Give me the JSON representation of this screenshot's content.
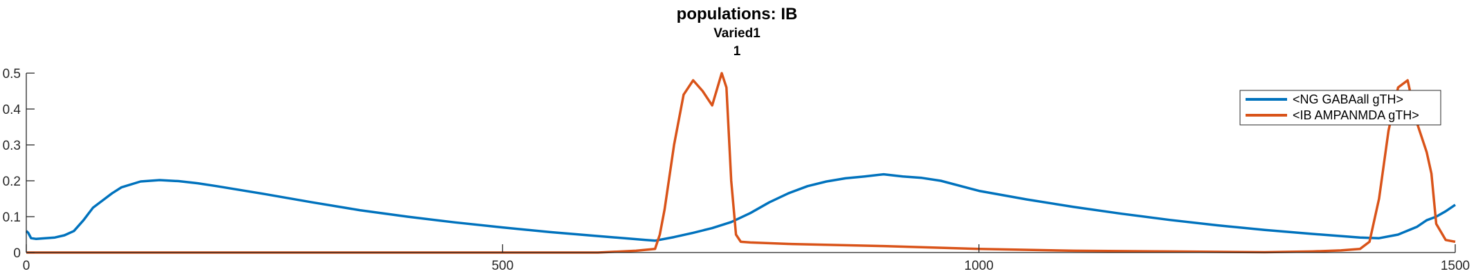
{
  "chart_data": {
    "type": "line",
    "title": "populations: IB",
    "subtitle_lines": [
      "Varied1",
      "1"
    ],
    "xlabel": "",
    "ylabel": "",
    "xlim": [
      0,
      1500
    ],
    "ylim": [
      0,
      0.5
    ],
    "xticks": [
      0,
      500,
      1000,
      1500
    ],
    "yticks": [
      0,
      0.1,
      0.2,
      0.3,
      0.4,
      0.5
    ],
    "ytick_labels": [
      "0",
      "0.1",
      "0.2",
      "0.3",
      "0.4",
      "0.5"
    ],
    "grid": false,
    "legend_position": "top-right",
    "series": [
      {
        "name": "<NG GABAall gTH>",
        "color": "#0072BD",
        "x": [
          0,
          2,
          5,
          10,
          20,
          30,
          40,
          50,
          60,
          70,
          80,
          90,
          100,
          120,
          140,
          160,
          180,
          200,
          250,
          300,
          350,
          400,
          450,
          500,
          550,
          600,
          650,
          660,
          680,
          700,
          720,
          740,
          760,
          780,
          800,
          820,
          840,
          860,
          880,
          900,
          920,
          940,
          960,
          1000,
          1050,
          1100,
          1150,
          1200,
          1250,
          1300,
          1350,
          1400,
          1420,
          1440,
          1460,
          1470,
          1480,
          1490,
          1500
        ],
        "y": [
          0.06,
          0.055,
          0.04,
          0.038,
          0.04,
          0.042,
          0.048,
          0.06,
          0.09,
          0.125,
          0.145,
          0.165,
          0.182,
          0.198,
          0.202,
          0.199,
          0.193,
          0.185,
          0.163,
          0.14,
          0.118,
          0.1,
          0.084,
          0.07,
          0.057,
          0.046,
          0.035,
          0.033,
          0.043,
          0.055,
          0.068,
          0.085,
          0.11,
          0.14,
          0.165,
          0.185,
          0.198,
          0.207,
          0.212,
          0.218,
          0.212,
          0.208,
          0.2,
          0.172,
          0.148,
          0.127,
          0.108,
          0.091,
          0.076,
          0.063,
          0.052,
          0.042,
          0.04,
          0.05,
          0.072,
          0.09,
          0.1,
          0.115,
          0.133
        ]
      },
      {
        "name": "<IB AMPANMDA gTH>",
        "color": "#D95319",
        "x": [
          0,
          200,
          400,
          600,
          640,
          660,
          665,
          670,
          680,
          690,
          700,
          710,
          720,
          730,
          735,
          740,
          745,
          750,
          760,
          800,
          900,
          1000,
          1100,
          1200,
          1300,
          1350,
          1380,
          1400,
          1410,
          1420,
          1430,
          1440,
          1450,
          1460,
          1470,
          1475,
          1480,
          1490,
          1500
        ],
        "y": [
          0,
          0,
          0,
          0,
          0.005,
          0.01,
          0.05,
          0.12,
          0.3,
          0.44,
          0.48,
          0.45,
          0.41,
          0.5,
          0.46,
          0.2,
          0.05,
          0.03,
          0.028,
          0.024,
          0.018,
          0.01,
          0.005,
          0.003,
          0.001,
          0.003,
          0.006,
          0.01,
          0.03,
          0.15,
          0.34,
          0.46,
          0.48,
          0.36,
          0.28,
          0.22,
          0.08,
          0.035,
          0.03
        ]
      }
    ]
  }
}
